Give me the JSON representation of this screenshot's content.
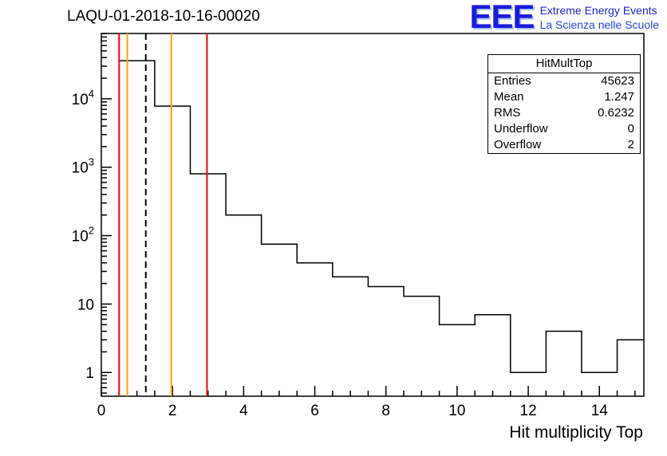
{
  "header": {
    "title": "LAQU-01-2018-10-16-00020",
    "logo": {
      "text": "EEE",
      "line1": "Extreme Energy Events",
      "line2": "La Scienza nelle Scuole",
      "color": "#1b1bdc"
    }
  },
  "stats": {
    "title": "HitMultTop",
    "rows": [
      {
        "label": "Entries",
        "value": "45623"
      },
      {
        "label": "Mean",
        "value": "1.247"
      },
      {
        "label": "RMS",
        "value": "0.6232"
      },
      {
        "label": "Underflow",
        "value": "0"
      },
      {
        "label": "Overflow",
        "value": "2"
      }
    ]
  },
  "chart_data": {
    "type": "bar",
    "title": "LAQU-01-2018-10-16-00020",
    "xlabel": "Hit multiplicity Top",
    "ylabel": "",
    "y_scale": "log",
    "grid": false,
    "legend": false,
    "x_range": [
      0,
      15.25
    ],
    "y_range": [
      0.45,
      90000
    ],
    "bin_edges": [
      0.5,
      1.5,
      2.5,
      3.5,
      4.5,
      5.5,
      6.5,
      7.5,
      8.5,
      9.5,
      10.5,
      11.5,
      12.5,
      13.5,
      14.5,
      15.5
    ],
    "values": [
      36000,
      7800,
      800,
      200,
      75,
      40,
      25,
      18,
      13,
      5,
      7,
      1,
      4,
      1,
      3
    ],
    "x_ticks": {
      "major": [
        0,
        2,
        4,
        6,
        8,
        10,
        12,
        14
      ],
      "minor_step": 0.5
    },
    "y_ticks": [
      {
        "value": 1,
        "label": "1",
        "exp": ""
      },
      {
        "value": 10,
        "label": "10",
        "exp": ""
      },
      {
        "value": 100,
        "label": "10",
        "exp": "2"
      },
      {
        "value": 1000,
        "label": "10",
        "exp": "3"
      },
      {
        "value": 10000,
        "label": "10",
        "exp": "4"
      }
    ],
    "marker_lines": [
      {
        "x": 0.5,
        "color": "#ff0000",
        "style": "solid"
      },
      {
        "x": 0.73,
        "color": "#ffa500",
        "style": "solid"
      },
      {
        "x": 1.25,
        "color": "#000000",
        "style": "dashed"
      },
      {
        "x": 1.97,
        "color": "#ffa500",
        "style": "solid"
      },
      {
        "x": 2.97,
        "color": "#ff0000",
        "style": "solid"
      }
    ],
    "line_color": "#000000"
  }
}
